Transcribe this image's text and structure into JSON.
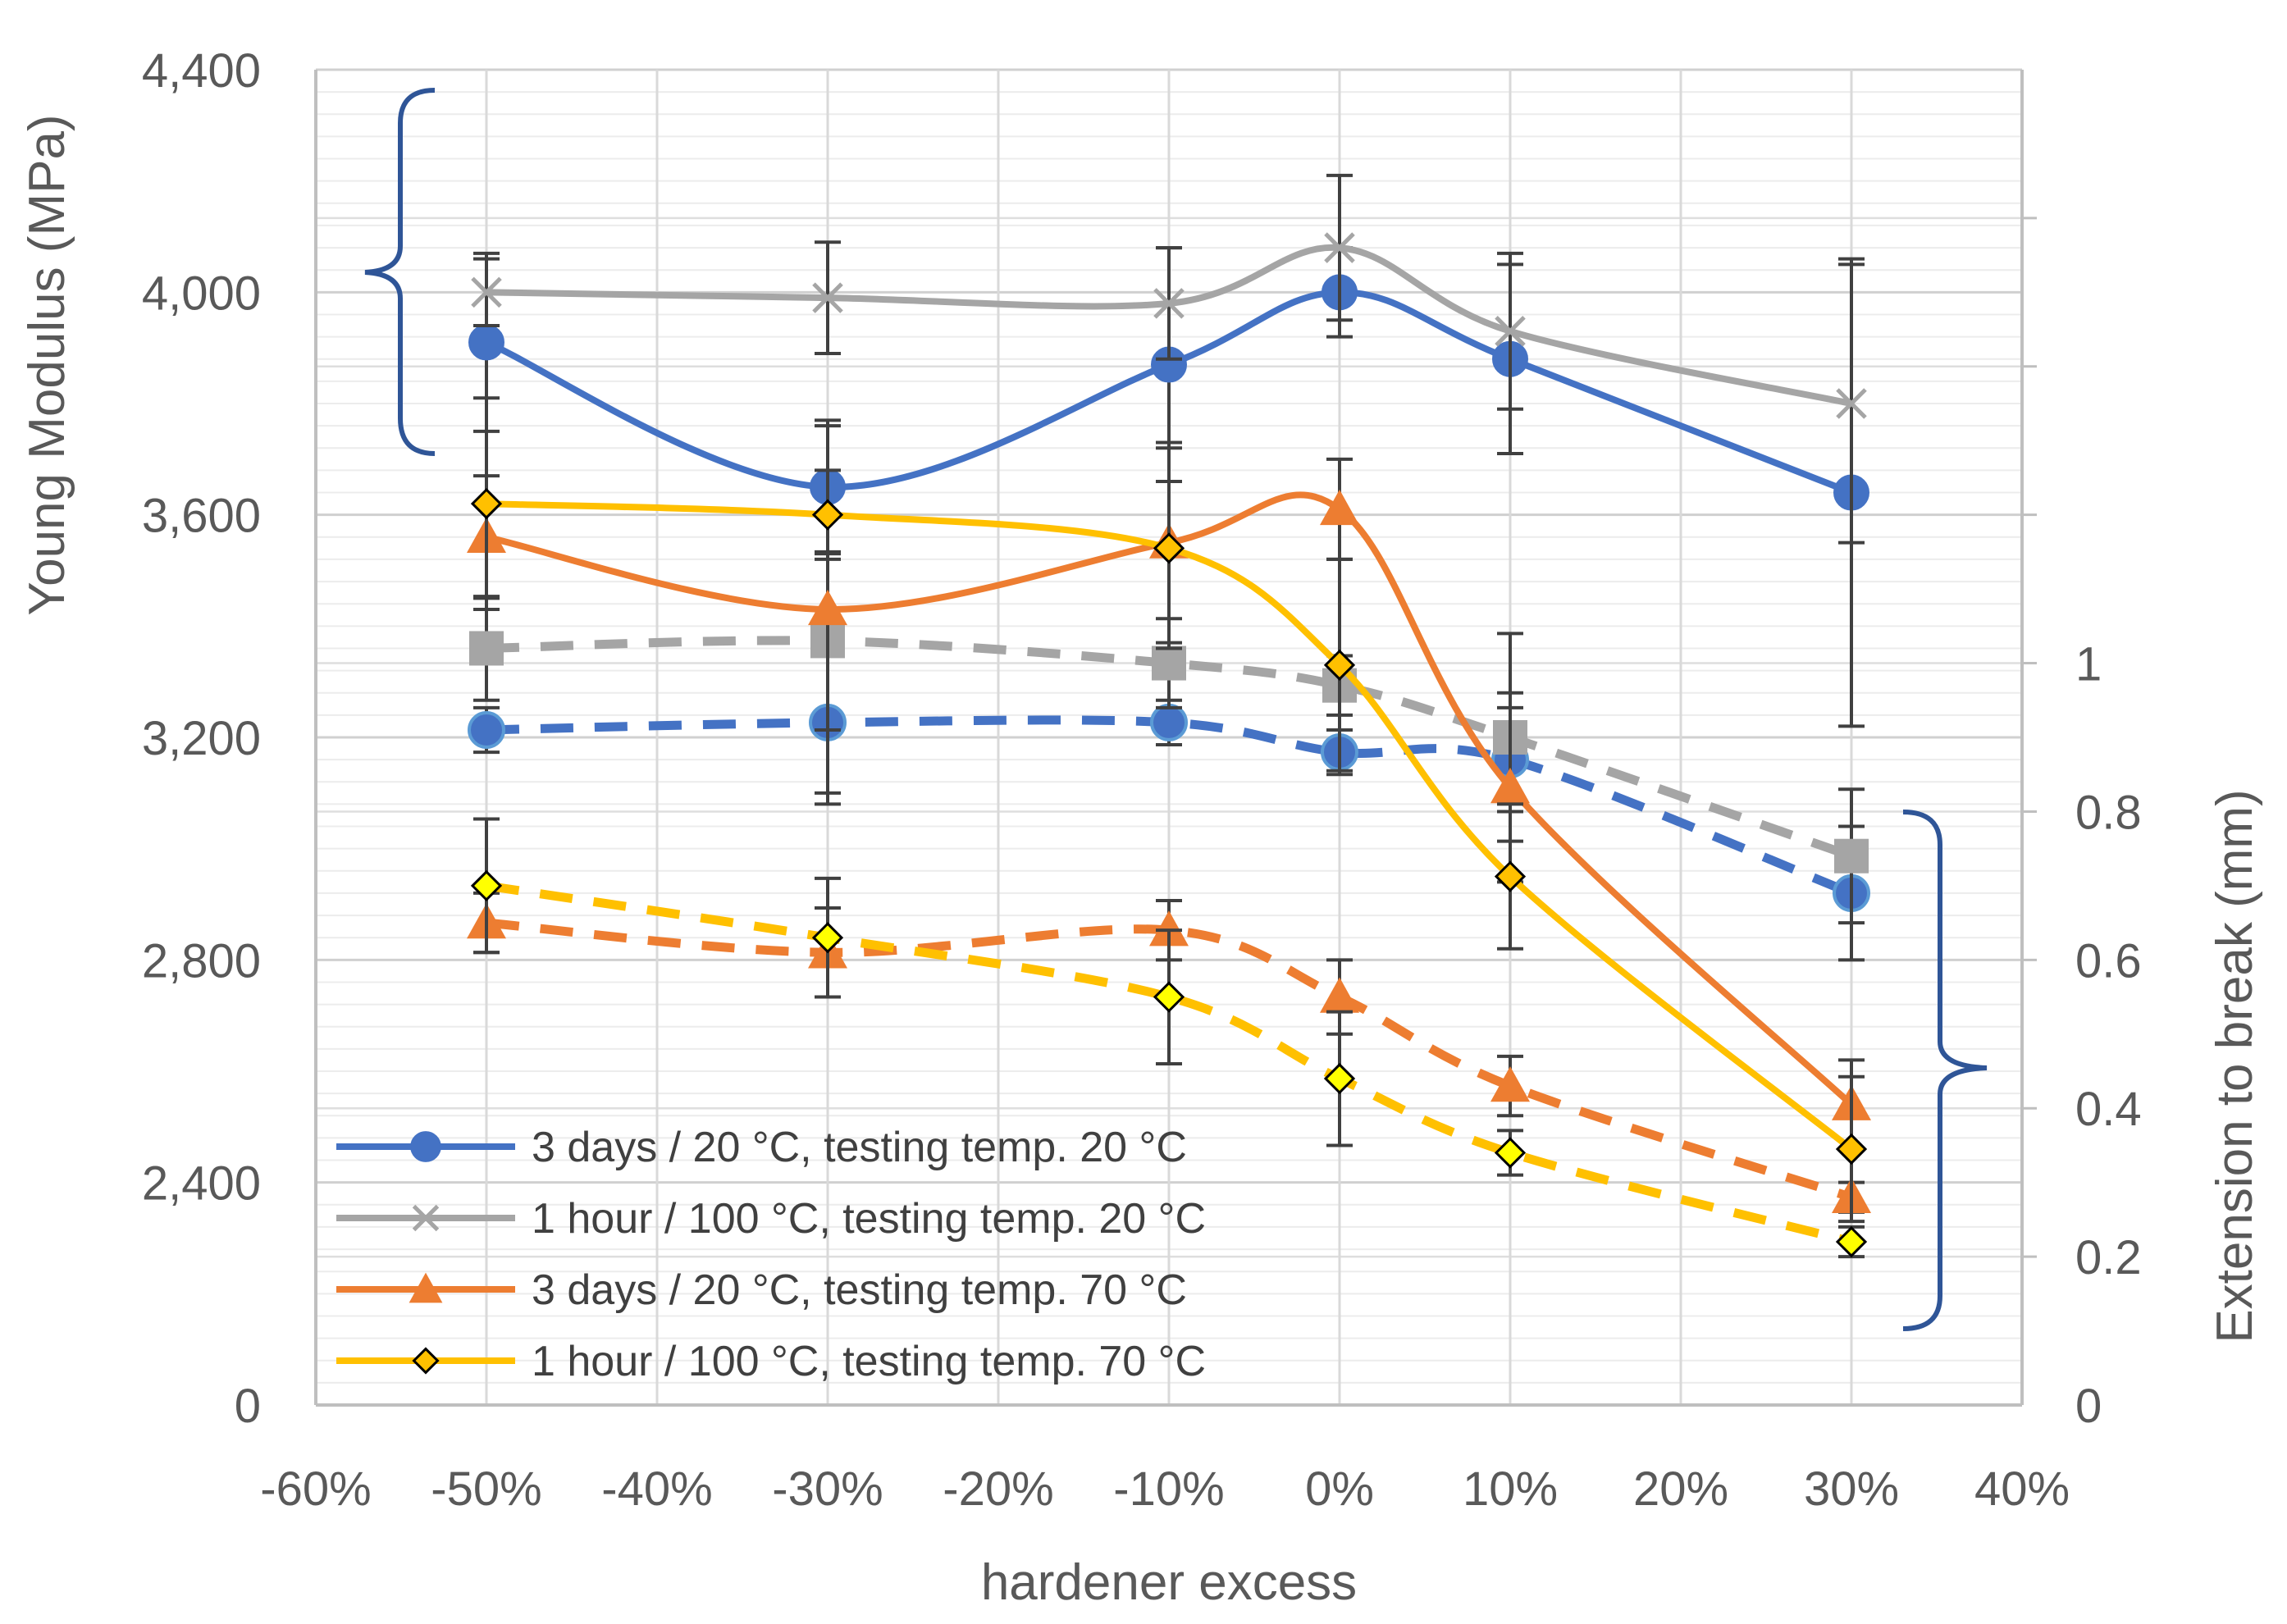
{
  "chart_data": {
    "type": "line",
    "xlabel": "hardener excess",
    "ylabel": "Young Modulus (MPa)",
    "y2label": "Extension to break (mm)",
    "x_ticks": [
      "-60%",
      "-50%",
      "-40%",
      "-30%",
      "-20%",
      "-10%",
      "0%",
      "10%",
      "20%",
      "30%",
      "40%"
    ],
    "xlim": [
      -60,
      40
    ],
    "ylim": [
      0,
      4400
    ],
    "y_ticks": [
      "0",
      "2,400",
      "2,800",
      "3,200",
      "3,600",
      "4,000",
      "4,400"
    ],
    "y2lim": [
      0,
      1.8
    ],
    "y2_ticks": [
      "0",
      "0.2",
      "0.4",
      "0.6",
      "0.8",
      "1"
    ],
    "x": [
      -50,
      -30,
      -10,
      0,
      10,
      30
    ],
    "modulus_series": [
      {
        "name": "3 days / 20 °C, testing temp. 20 °C",
        "color": "#4472C4",
        "marker": "circle",
        "values": [
          3910,
          3650,
          3870,
          4000,
          3880,
          3640
        ],
        "error": [
          160,
          120,
          210,
          80,
          170,
          420
        ]
      },
      {
        "name": "1 hour / 100 °C, testing temp. 20 °C",
        "color": "#A5A5A5",
        "marker": "x",
        "values": [
          4000,
          3990,
          3980,
          4080,
          3930,
          3800
        ],
        "error": [
          60,
          100,
          100,
          130,
          140,
          250
        ]
      },
      {
        "name": "3 days / 20 °C, testing temp. 70 °C",
        "color": "#ED7D31",
        "marker": "triangle",
        "values": [
          3560,
          3430,
          3550,
          3610,
          3110,
          2540
        ],
        "error": [
          110,
          330,
          180,
          90,
          170,
          80
        ]
      },
      {
        "name": "1 hour / 100 °C, testing temp. 70 °C",
        "color": "#FFC000",
        "marker": "diamond",
        "values": [
          3620,
          3600,
          3540,
          3330,
          2950,
          2460
        ],
        "error": [
          190,
          80,
          180,
          190,
          130,
          130
        ]
      }
    ],
    "extension_series": [
      {
        "name": "3 days / 20 °C, testing temp. 20 °C",
        "color": "#4472C4",
        "marker": "circle",
        "values": [
          0.91,
          0.92,
          0.92,
          0.88,
          0.87,
          0.69
        ],
        "error": [
          0.03,
          0.11,
          0.03,
          0.03,
          0.07,
          0.09
        ]
      },
      {
        "name": "1 hour / 100 °C, testing temp. 20 °C",
        "color": "#A5A5A5",
        "marker": "square",
        "values": [
          1.02,
          1.03,
          1.0,
          0.97,
          0.9,
          0.74
        ],
        "error": [
          0.07,
          0.12,
          0.06,
          0.04,
          0.14,
          0.09
        ]
      },
      {
        "name": "3 days / 20 °C, testing temp. 70 °C",
        "color": "#ED7D31",
        "marker": "triangle",
        "values": [
          0.65,
          0.61,
          0.64,
          0.55,
          0.43,
          0.28
        ],
        "error": [
          0.04,
          0.06,
          0.04,
          0.05,
          0.04,
          0.02
        ]
      },
      {
        "name": "1 hour / 100 °C, testing temp. 70 °C",
        "color": "#FFC000",
        "marker": "diamond-yellow",
        "values": [
          0.7,
          0.63,
          0.55,
          0.44,
          0.34,
          0.22
        ],
        "error": [
          0.09,
          0.08,
          0.09,
          0.09,
          0.03,
          0.02
        ]
      }
    ],
    "legend": [
      {
        "label": "3 days / 20 °C, testing temp. 20 °C",
        "color": "#4472C4",
        "marker": "circle"
      },
      {
        "label": "1 hour / 100 °C, testing temp. 20 °C",
        "color": "#A5A5A5",
        "marker": "x"
      },
      {
        "label": "3 days / 20 °C, testing temp. 70 °C",
        "color": "#ED7D31",
        "marker": "triangle"
      },
      {
        "label": "1 hour / 100 °C, testing temp. 70 °C",
        "color": "#FFC000",
        "marker": "diamond"
      }
    ],
    "legend_position": "bottom-left",
    "grid": true,
    "bracket_color": "#2F5597"
  }
}
